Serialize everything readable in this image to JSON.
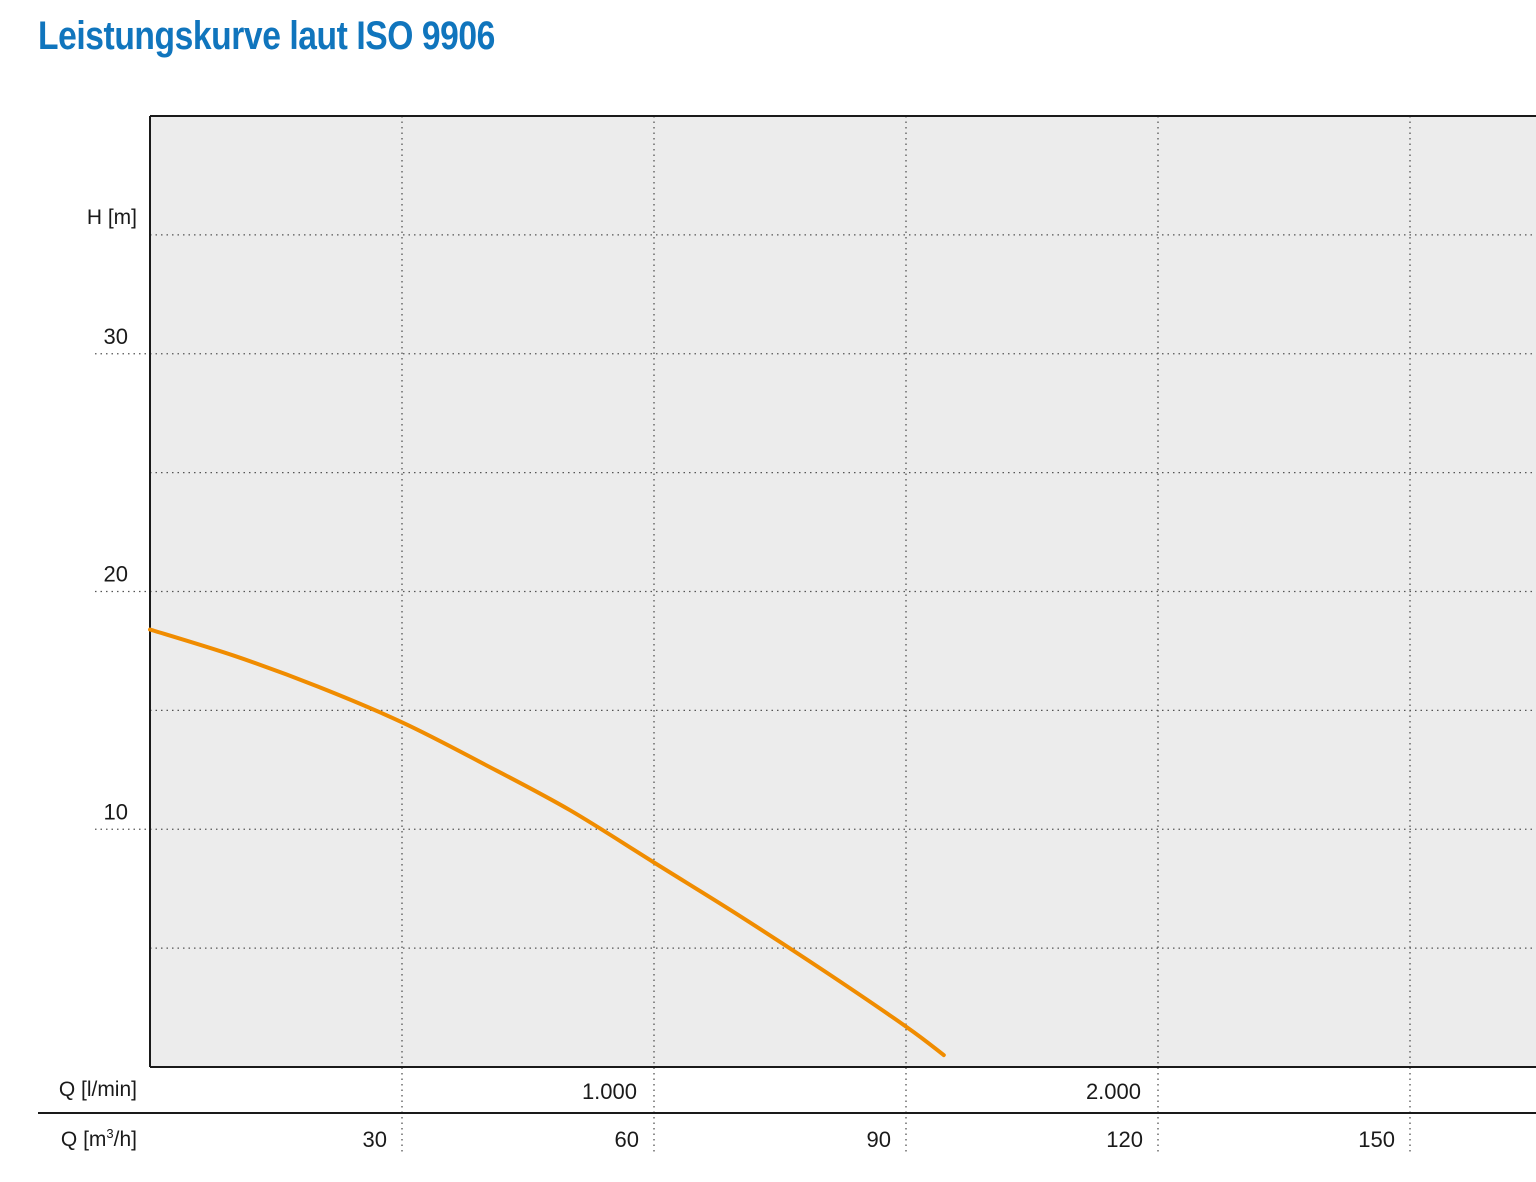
{
  "chart_data": {
    "type": "line",
    "title": "Leistungskurve laut ISO 9906",
    "ylabel": "H [m]",
    "xlabel_primary": "Q [l/min]",
    "xlabel_secondary_prefix": "Q [m",
    "xlabel_secondary_sup": "3",
    "xlabel_secondary_suffix": "/h]",
    "x_unit": "m3/h",
    "xlim": [
      0,
      165
    ],
    "ylim": [
      0,
      40
    ],
    "grid": true,
    "y_ticks": [
      {
        "value": 10,
        "label": "10"
      },
      {
        "value": 20,
        "label": "20"
      },
      {
        "value": 30,
        "label": "30"
      }
    ],
    "y_grid_values": [
      5,
      10,
      15,
      20,
      25,
      30,
      35
    ],
    "x_ticks_lmin": [
      {
        "value": 60,
        "label": "1.000"
      },
      {
        "value": 120,
        "label": "2.000"
      }
    ],
    "x_ticks_m3h": [
      {
        "value": 30,
        "label": "30"
      },
      {
        "value": 60,
        "label": "60"
      },
      {
        "value": 90,
        "label": "90"
      },
      {
        "value": 120,
        "label": "120"
      },
      {
        "value": 150,
        "label": "150"
      }
    ],
    "series": [
      {
        "color": "#f08c00",
        "x": [
          0,
          10,
          20,
          30,
          40,
          50,
          60,
          70,
          80,
          90,
          94.5
        ],
        "y": [
          18.4,
          17.3,
          16.0,
          14.5,
          12.7,
          10.8,
          8.6,
          6.4,
          4.1,
          1.7,
          0.5
        ]
      }
    ]
  },
  "colors": {
    "title": "#1075bd",
    "plot_background": "#ececec",
    "grid": "#555555",
    "axis": "#1a1a1a",
    "curve": "#f08c00"
  }
}
